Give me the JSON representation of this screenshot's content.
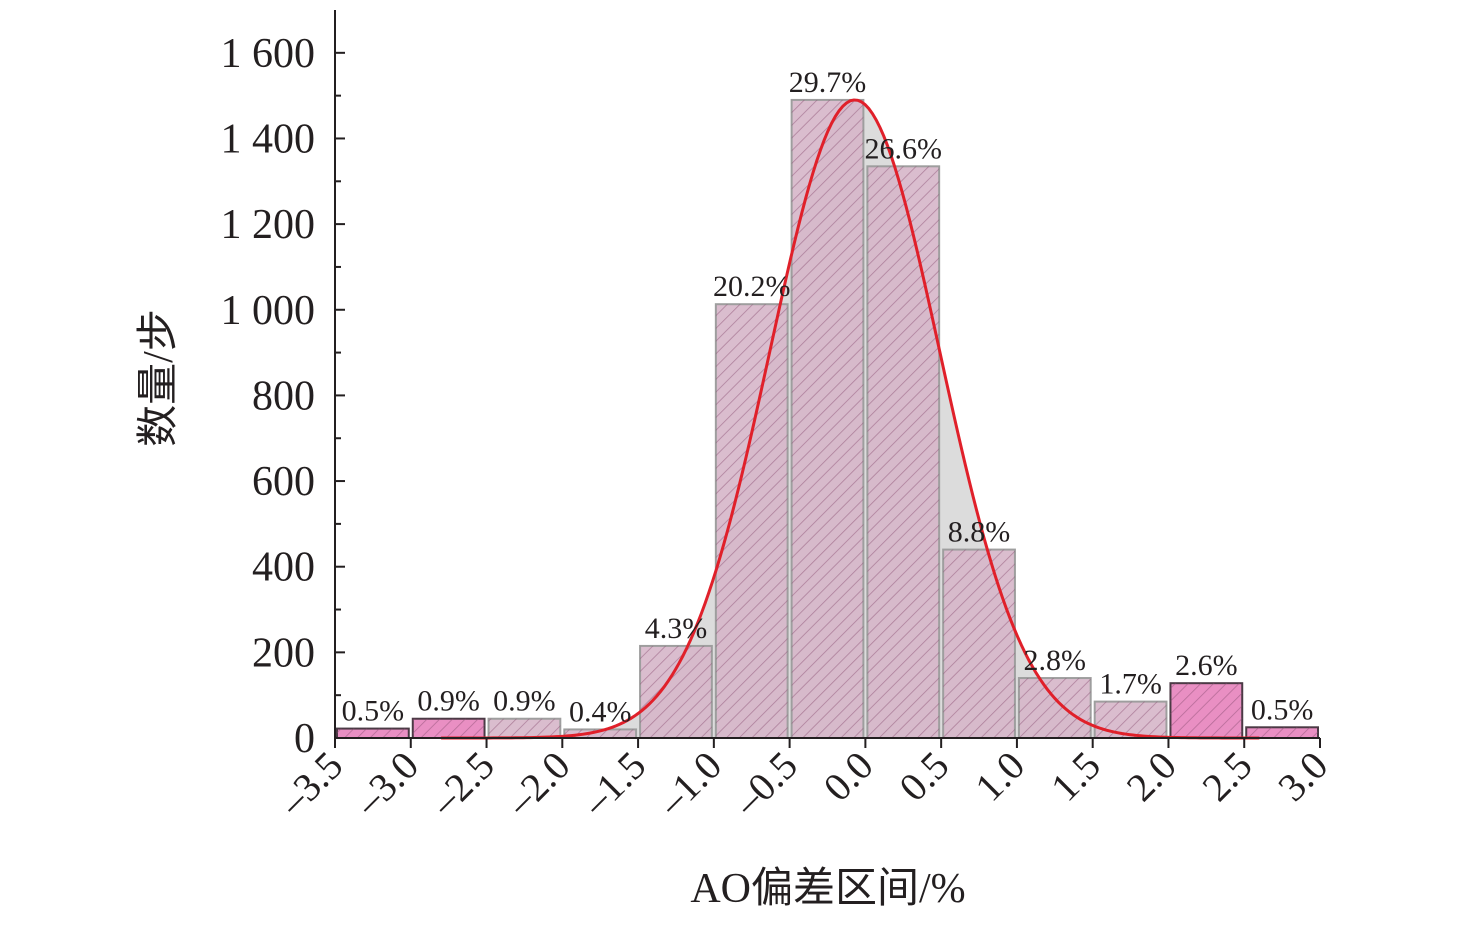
{
  "chart_data": {
    "type": "bar",
    "xlabel": "AO偏差区间/%",
    "ylabel": "数量/步",
    "ylim": [
      0,
      1700
    ],
    "yticks": [
      0,
      200,
      400,
      600,
      800,
      1000,
      1200,
      1400,
      1600
    ],
    "ytick_labels": [
      "0",
      "200",
      "400",
      "600",
      "800",
      "1 000",
      "1 200",
      "1 400",
      "1 600"
    ],
    "xlim": [
      -3.5,
      3.0
    ],
    "xticks": [
      -3.5,
      -3.0,
      -2.5,
      -2.0,
      -1.5,
      -1.0,
      -0.5,
      0.0,
      0.5,
      1.0,
      1.5,
      2.0,
      2.5,
      3.0
    ],
    "xtick_labels": [
      "–3.5",
      "–3.0",
      "–2.5",
      "–2.0",
      "–1.5",
      "–1.0",
      "–0.5",
      "0.0",
      "0.5",
      "1.0",
      "1.5",
      "2.0",
      "2.5",
      "3.0"
    ],
    "bars": [
      {
        "x0": -3.5,
        "x1": -3.0,
        "value": 22,
        "label": "0.5%",
        "group": "tail"
      },
      {
        "x0": -3.0,
        "x1": -2.5,
        "value": 45,
        "label": "0.9%",
        "group": "tail"
      },
      {
        "x0": -2.5,
        "x1": -2.0,
        "value": 45,
        "label": "0.9%",
        "group": "core"
      },
      {
        "x0": -2.0,
        "x1": -1.5,
        "value": 20,
        "label": "0.4%",
        "group": "core"
      },
      {
        "x0": -1.5,
        "x1": -1.0,
        "value": 215,
        "label": "4.3%",
        "group": "core"
      },
      {
        "x0": -1.0,
        "x1": -0.5,
        "value": 1013,
        "label": "20.2%",
        "group": "core"
      },
      {
        "x0": -0.5,
        "x1": 0.0,
        "value": 1490,
        "label": "29.7%",
        "group": "core"
      },
      {
        "x0": 0.0,
        "x1": 0.5,
        "value": 1335,
        "label": "26.6%",
        "group": "core"
      },
      {
        "x0": 0.5,
        "x1": 1.0,
        "value": 440,
        "label": "8.8%",
        "group": "core"
      },
      {
        "x0": 1.0,
        "x1": 1.5,
        "value": 140,
        "label": "2.8%",
        "group": "core"
      },
      {
        "x0": 1.5,
        "x1": 2.0,
        "value": 85,
        "label": "1.7%",
        "group": "core"
      },
      {
        "x0": 2.0,
        "x1": 2.5,
        "value": 128,
        "label": "2.6%",
        "group": "tail"
      },
      {
        "x0": 2.5,
        "x1": 3.0,
        "value": 25,
        "label": "0.5%",
        "group": "tail"
      }
    ],
    "fit_curve": {
      "type": "normal",
      "mean": -0.07,
      "std": 0.56,
      "peak": 1490,
      "x_range": [
        -2.8,
        2.6
      ]
    },
    "grid": false,
    "colors": {
      "tail_fill": "#e98fc3",
      "tail_stroke": "#4b3a45",
      "core_fill": "#d6b6c9",
      "core_stroke": "#9e9e9e",
      "hatch": "#8a4f73",
      "curve": "#e0202a",
      "curve_fill": "#dcdcdc",
      "axis": "#231f20"
    }
  }
}
